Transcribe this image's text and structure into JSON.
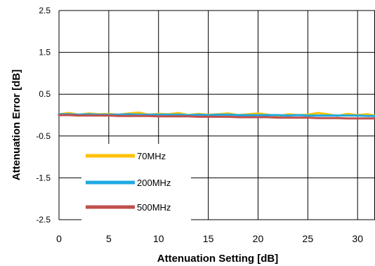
{
  "chart_data": {
    "type": "line",
    "title": "",
    "xlabel": "Attenuation Setting [dB]",
    "ylabel": "Attenuation Error [dB]",
    "xlim": [
      0,
      31.75
    ],
    "ylim": [
      -2.5,
      2.5
    ],
    "x_ticks": [
      0,
      5,
      10,
      15,
      20,
      25,
      30
    ],
    "x_tick_labels": [
      "0",
      "5",
      "10",
      "15",
      "20",
      "25",
      "30"
    ],
    "y_ticks": [
      -2.5,
      -1.5,
      -0.5,
      0.5,
      1.5,
      2.5
    ],
    "y_tick_labels": [
      "-2.5",
      "-1.5",
      "-0.5",
      "0.5",
      "1.5",
      "2.5"
    ],
    "grid": true,
    "legend_position": "inside-left-bottom",
    "x": [
      0,
      1,
      2,
      3,
      4,
      5,
      6,
      7,
      8,
      9,
      10,
      11,
      12,
      13,
      14,
      15,
      16,
      17,
      18,
      19,
      20,
      21,
      22,
      23,
      24,
      25,
      26,
      27,
      28,
      29,
      30,
      31,
      31.75
    ],
    "series": [
      {
        "name": "70MHz",
        "color": "#FFC000",
        "values": [
          0.02,
          0.05,
          0.01,
          0.04,
          0.02,
          0.03,
          0.01,
          0.04,
          0.06,
          0.01,
          0.03,
          0.02,
          0.05,
          0.0,
          0.03,
          0.01,
          0.02,
          0.04,
          0.0,
          0.02,
          0.04,
          0.01,
          -0.03,
          0.02,
          0.0,
          0.01,
          0.05,
          0.02,
          -0.02,
          0.03,
          0.0,
          0.02,
          -0.01
        ]
      },
      {
        "name": "200MHz",
        "color": "#1FA9E1",
        "values": [
          0.02,
          0.02,
          0.01,
          0.02,
          0.01,
          0.01,
          0.01,
          0.02,
          0.01,
          0.01,
          0.01,
          0.01,
          0.01,
          0.0,
          0.01,
          0.0,
          0.01,
          0.01,
          0.0,
          0.0,
          0.0,
          0.0,
          0.0,
          -0.01,
          0.0,
          -0.01,
          -0.01,
          -0.01,
          -0.01,
          -0.01,
          -0.01,
          -0.02,
          -0.02
        ]
      },
      {
        "name": "500MHz",
        "color": "#C0504D",
        "values": [
          0.0,
          0.0,
          -0.01,
          -0.01,
          -0.01,
          -0.01,
          -0.02,
          -0.02,
          -0.02,
          -0.02,
          -0.03,
          -0.03,
          -0.03,
          -0.03,
          -0.04,
          -0.04,
          -0.04,
          -0.04,
          -0.05,
          -0.05,
          -0.05,
          -0.05,
          -0.06,
          -0.06,
          -0.06,
          -0.06,
          -0.07,
          -0.07,
          -0.07,
          -0.08,
          -0.08,
          -0.08,
          -0.08
        ]
      }
    ]
  }
}
